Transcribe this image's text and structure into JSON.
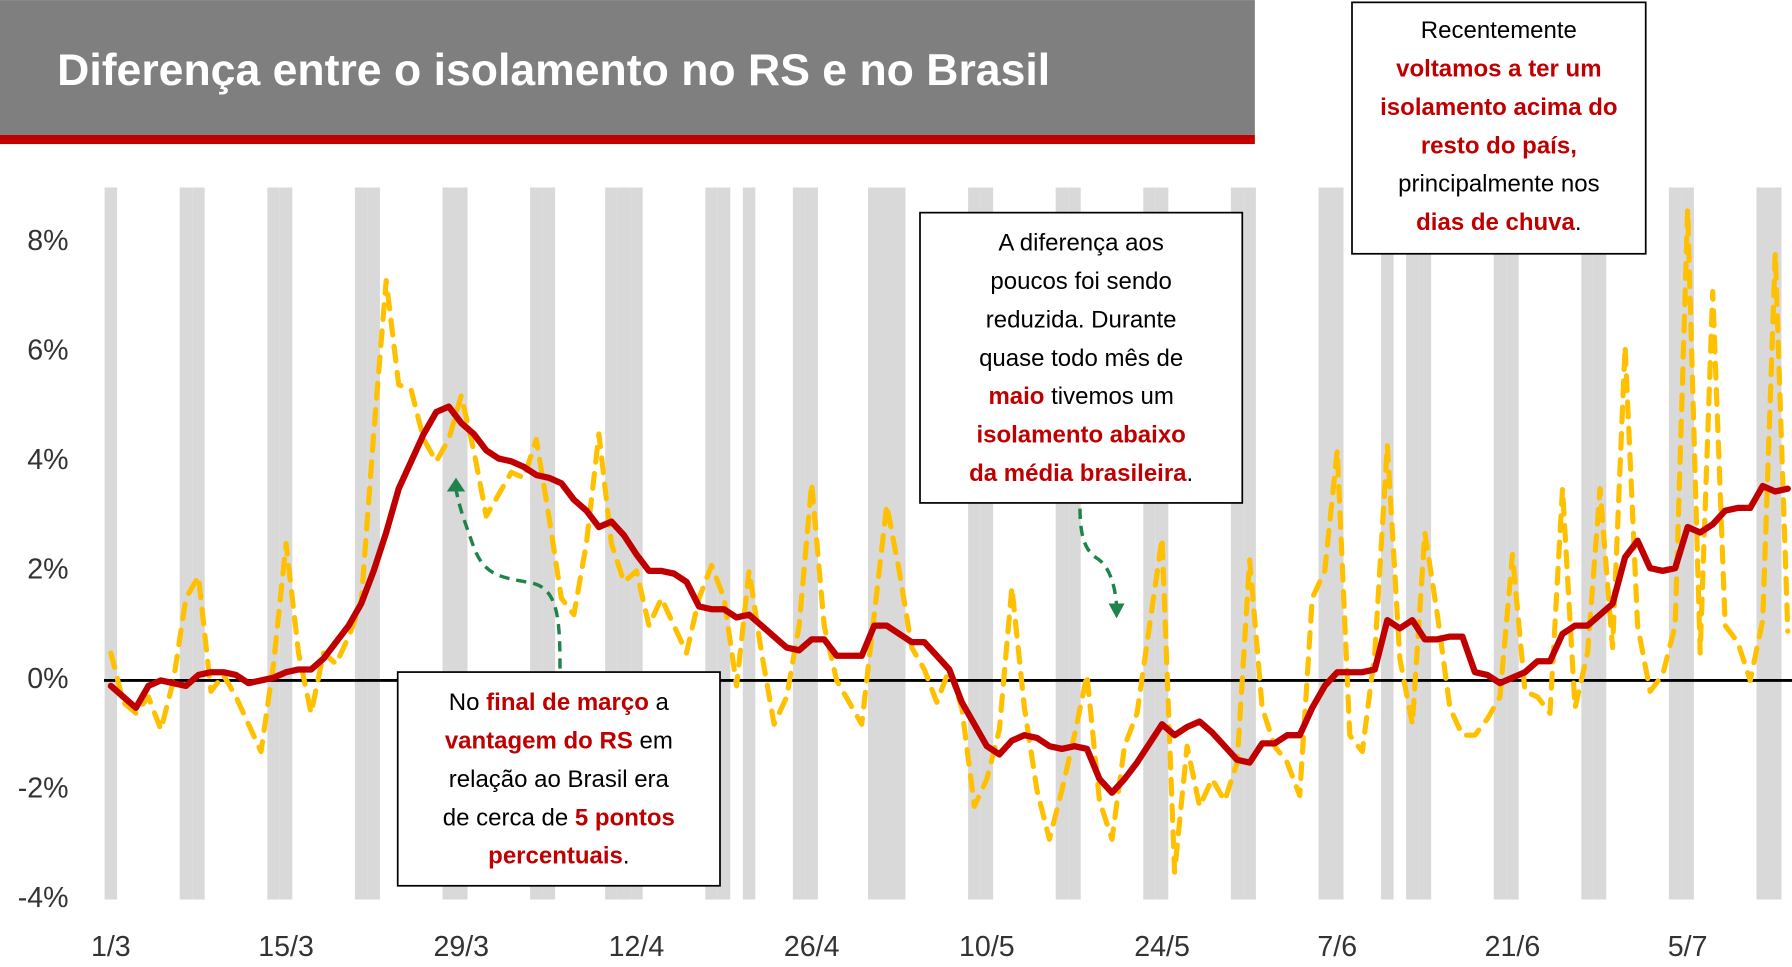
{
  "chart_data": {
    "type": "line",
    "title": "Diferença entre o isolamento no RS e no Brasil",
    "categories": [
      "1/3",
      null,
      null,
      null,
      null,
      null,
      null,
      null,
      null,
      null,
      null,
      null,
      null,
      null,
      "15/3",
      null,
      null,
      null,
      null,
      null,
      null,
      null,
      null,
      null,
      null,
      null,
      null,
      null,
      "29/3",
      null,
      null,
      null,
      null,
      null,
      null,
      null,
      null,
      null,
      null,
      null,
      null,
      null,
      "12/4",
      null,
      null,
      null,
      null,
      null,
      null,
      null,
      null,
      null,
      null,
      null,
      null,
      null,
      "26/4",
      null,
      null,
      null,
      null,
      null,
      null,
      null,
      null,
      null,
      null,
      null,
      null,
      null,
      "10/5",
      null,
      null,
      null,
      null,
      null,
      null,
      null,
      null,
      null,
      null,
      null,
      null,
      null,
      "24/5",
      null,
      null,
      null,
      null,
      null,
      null,
      null,
      null,
      null,
      null,
      null,
      null,
      null,
      "7/6",
      null,
      null,
      null,
      null,
      null,
      null,
      null,
      null,
      null,
      null,
      null,
      null,
      null,
      "21/6",
      null,
      null,
      null,
      null,
      null,
      null,
      null,
      null,
      null,
      null,
      null,
      null,
      null,
      "5/7",
      null,
      null,
      null,
      null,
      null,
      null,
      null,
      null
    ],
    "series": [
      {
        "color": "#ffc000",
        "dashed": true,
        "values": [
          0.5,
          -0.4,
          -0.6,
          -0.3,
          -0.9,
          0.0,
          1.5,
          1.9,
          -0.2,
          0.1,
          -0.3,
          -0.8,
          -1.3,
          0.3,
          2.5,
          0.5,
          -0.6,
          0.5,
          0.3,
          0.8,
          1.4,
          4.5,
          7.3,
          5.4,
          5.3,
          4.4,
          4.0,
          4.4,
          5.2,
          4.2,
          3.0,
          3.4,
          3.8,
          3.7,
          4.4,
          3.0,
          1.5,
          1.2,
          2.5,
          4.5,
          2.5,
          1.8,
          2.0,
          1.0,
          1.5,
          1.0,
          0.5,
          1.5,
          2.1,
          1.5,
          -0.1,
          2.0,
          0.5,
          -0.8,
          -0.3,
          1.0,
          3.6,
          1.0,
          0.0,
          -0.4,
          -0.8,
          1.2,
          3.2,
          2.0,
          0.6,
          0.2,
          -0.4,
          0.2,
          -0.5,
          -2.3,
          -1.8,
          -0.9,
          1.7,
          -0.5,
          -2.0,
          -2.9,
          -2.0,
          -1.0,
          0.1,
          -2.2,
          -2.9,
          -1.2,
          -0.6,
          1.0,
          2.6,
          -3.5,
          -1.2,
          -2.3,
          -1.8,
          -2.2,
          -1.5,
          2.2,
          -0.5,
          -1.2,
          -1.5,
          -2.1,
          1.5,
          2.0,
          4.2,
          -1.0,
          -1.3,
          0.5,
          4.3,
          0.4,
          -0.8,
          2.7,
          1.2,
          -0.5,
          -1.0,
          -1.0,
          -0.7,
          -0.3,
          2.3,
          -0.2,
          -0.3,
          -0.6,
          3.5,
          -0.5,
          0.5,
          3.5,
          0.6,
          6.1,
          1.0,
          -0.2,
          0.1,
          1.0,
          8.6,
          0.5,
          7.1,
          1.0,
          0.7,
          0.0,
          1.1,
          7.8,
          0.9
        ]
      },
      {
        "color": "#c00000",
        "dashed": false,
        "values": [
          -0.1,
          -0.3,
          -0.5,
          -0.1,
          0,
          -0.05,
          -0.1,
          0.1,
          0.15,
          0.15,
          0.1,
          -0.05,
          0,
          0.05,
          0.15,
          0.2,
          0.2,
          0.4,
          0.7,
          1.0,
          1.4,
          2.0,
          2.7,
          3.5,
          4.0,
          4.5,
          4.9,
          5.0,
          4.7,
          4.5,
          4.2,
          4.05,
          4.0,
          3.9,
          3.75,
          3.7,
          3.6,
          3.3,
          3.1,
          2.8,
          2.9,
          2.65,
          2.3,
          2.0,
          2.0,
          1.95,
          1.8,
          1.35,
          1.3,
          1.3,
          1.15,
          1.2,
          1.0,
          0.8,
          0.6,
          0.55,
          0.75,
          0.75,
          0.45,
          0.45,
          0.45,
          1.0,
          1.0,
          0.85,
          0.7,
          0.7,
          0.45,
          0.2,
          -0.4,
          -0.8,
          -1.2,
          -1.35,
          -1.1,
          -1.0,
          -1.05,
          -1.2,
          -1.25,
          -1.2,
          -1.25,
          -1.8,
          -2.05,
          -1.8,
          -1.5,
          -1.15,
          -0.8,
          -1.0,
          -0.85,
          -0.75,
          -0.95,
          -1.2,
          -1.45,
          -1.5,
          -1.15,
          -1.15,
          -1.0,
          -1.0,
          -0.5,
          -0.1,
          0.15,
          0.15,
          0.15,
          0.2,
          1.1,
          0.95,
          1.1,
          0.75,
          0.75,
          0.8,
          0.8,
          0.15,
          0.1,
          -0.05,
          0.05,
          0.15,
          0.35,
          0.35,
          0.85,
          1.0,
          1.0,
          1.2,
          1.4,
          2.25,
          2.55,
          2.05,
          2.0,
          2.05,
          2.8,
          2.7,
          2.85,
          3.1,
          3.15,
          3.15,
          3.55,
          3.45,
          3.5
        ]
      }
    ],
    "shaded_days": [
      0,
      6,
      7,
      13,
      14,
      20,
      21,
      27,
      28,
      34,
      35,
      40,
      41,
      42,
      48,
      49,
      51,
      55,
      56,
      61,
      62,
      63,
      69,
      70,
      76,
      77,
      83,
      84,
      90,
      91,
      97,
      98,
      102,
      104,
      105,
      111,
      112,
      118,
      119,
      125,
      126,
      132,
      133
    ],
    "shade_color": "#d9d9d9",
    "ylim": [
      -4,
      9
    ],
    "yticks": [
      {
        "value": -4,
        "label": "-4%"
      },
      {
        "value": -2,
        "label": "-2%"
      },
      {
        "value": 0,
        "label": "0%"
      },
      {
        "value": 2,
        "label": "2%"
      },
      {
        "value": 4,
        "label": "4%"
      },
      {
        "value": 6,
        "label": "6%"
      },
      {
        "value": 8,
        "label": "8%"
      }
    ],
    "zero_line": true,
    "annotations": [
      {
        "lines": [
          [
            {
              "text": "Recentemente",
              "emphasis": false
            }
          ],
          [
            {
              "text": "voltamos a ter um",
              "emphasis": true
            }
          ],
          [
            {
              "text": "isolamento acima do",
              "emphasis": true
            }
          ],
          [
            {
              "text": "resto do país,",
              "emphasis": true
            }
          ],
          [
            {
              "text": "principalmente nos",
              "emphasis": false
            }
          ],
          [
            {
              "text": "dias de chuva",
              "emphasis": true
            },
            {
              "text": ".",
              "emphasis": false
            }
          ]
        ]
      },
      {
        "lines": [
          [
            {
              "text": "A diferença aos",
              "emphasis": false
            }
          ],
          [
            {
              "text": "poucos foi sendo",
              "emphasis": false
            }
          ],
          [
            {
              "text": "reduzida. Durante",
              "emphasis": false
            }
          ],
          [
            {
              "text": "quase todo mês de",
              "emphasis": false
            }
          ],
          [
            {
              "text": "maio",
              "emphasis": true
            },
            {
              "text": " tivemos um",
              "emphasis": false
            }
          ],
          [
            {
              "text": "isolamento abaixo",
              "emphasis": true
            }
          ],
          [
            {
              "text": "da média brasileira",
              "emphasis": true
            },
            {
              "text": ".",
              "emphasis": false
            }
          ]
        ]
      },
      {
        "lines": [
          [
            {
              "text": "No ",
              "emphasis": false
            },
            {
              "text": "final de março",
              "emphasis": true
            },
            {
              "text": " a",
              "emphasis": false
            }
          ],
          [
            {
              "text": "vantagem do RS",
              "emphasis": true
            },
            {
              "text": " em",
              "emphasis": false
            }
          ],
          [
            {
              "text": "relação ao Brasil era",
              "emphasis": false
            }
          ],
          [
            {
              "text": "de cerca de ",
              "emphasis": false
            },
            {
              "text": "5 pontos",
              "emphasis": true
            }
          ],
          [
            {
              "text": "percentuais",
              "emphasis": true
            },
            {
              "text": ".",
              "emphasis": false
            }
          ]
        ]
      }
    ]
  }
}
